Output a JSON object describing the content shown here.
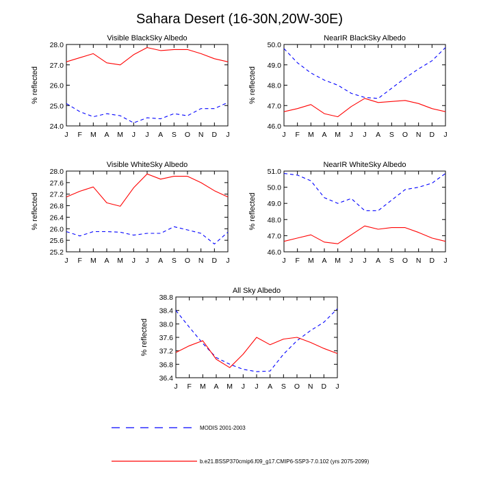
{
  "figure": {
    "title": "Sahara Desert (16-30N,20W-30E)",
    "legend": [
      {
        "label": "MODIS 2001-2003",
        "color": "#0000ff",
        "dash": "dashed"
      },
      {
        "label": "b.e21.BSSP370cmip6.f09_g17.CMIP6-SSP3-7.0.102 (yrs 2075-2099)",
        "color": "#ff0000",
        "dash": "solid"
      }
    ]
  },
  "chart_data": [
    {
      "type": "line",
      "title": "Visible BlackSky Albedo",
      "ylabel": "% reflected",
      "categories": [
        "J",
        "F",
        "M",
        "A",
        "M",
        "J",
        "J",
        "A",
        "S",
        "O",
        "N",
        "D",
        "J"
      ],
      "ylim": [
        24.0,
        28.0
      ],
      "yticks": [
        "24.0",
        "25.0",
        "26.0",
        "27.0",
        "28.0"
      ],
      "series": [
        {
          "name": "MODIS 2001-2003",
          "color": "#0000ff",
          "dashed": true,
          "values": [
            25.1,
            24.7,
            24.45,
            24.6,
            24.5,
            24.15,
            24.4,
            24.35,
            24.6,
            24.5,
            24.85,
            24.85,
            25.15
          ]
        },
        {
          "name": "b.e21.BSSP370cmip6.f09_g17.CMIP6-SSP3-7.0.102 (yrs 2075-2099)",
          "color": "#ff0000",
          "dashed": false,
          "values": [
            27.15,
            27.35,
            27.55,
            27.1,
            27.0,
            27.5,
            27.85,
            27.7,
            27.75,
            27.75,
            27.55,
            27.3,
            27.15
          ]
        }
      ]
    },
    {
      "type": "line",
      "title": "NearIR BlackSky Albedo",
      "ylabel": "% reflected",
      "categories": [
        "J",
        "F",
        "M",
        "A",
        "M",
        "J",
        "J",
        "A",
        "S",
        "O",
        "N",
        "D",
        "J"
      ],
      "ylim": [
        46.0,
        50.0
      ],
      "yticks": [
        "46.0",
        "47.0",
        "48.0",
        "49.0",
        "50.0"
      ],
      "series": [
        {
          "name": "MODIS 2001-2003",
          "color": "#0000ff",
          "dashed": true,
          "values": [
            49.8,
            49.1,
            48.6,
            48.25,
            48.0,
            47.6,
            47.4,
            47.35,
            47.85,
            48.35,
            48.8,
            49.2,
            49.85
          ]
        },
        {
          "name": "b.e21.BSSP370cmip6.f09_g17.CMIP6-SSP3-7.0.102 (yrs 2075-2099)",
          "color": "#ff0000",
          "dashed": false,
          "values": [
            46.7,
            46.85,
            47.05,
            46.6,
            46.45,
            46.95,
            47.35,
            47.15,
            47.2,
            47.25,
            47.1,
            46.85,
            46.7
          ]
        }
      ]
    },
    {
      "type": "line",
      "title": "Visible WhiteSky Albedo",
      "ylabel": "% reflected",
      "categories": [
        "J",
        "F",
        "M",
        "A",
        "M",
        "J",
        "J",
        "A",
        "S",
        "O",
        "N",
        "D",
        "J"
      ],
      "ylim": [
        25.2,
        28.0
      ],
      "yticks": [
        "25.2",
        "25.6",
        "26.0",
        "26.4",
        "26.8",
        "27.2",
        "27.6",
        "28.0"
      ],
      "series": [
        {
          "name": "MODIS 2001-2003",
          "color": "#0000ff",
          "dashed": true,
          "values": [
            25.9,
            25.75,
            25.9,
            25.9,
            25.88,
            25.78,
            25.84,
            25.84,
            26.07,
            25.96,
            25.84,
            25.47,
            25.88
          ]
        },
        {
          "name": "b.e21.BSSP370cmip6.f09_g17.CMIP6-SSP3-7.0.102 (yrs 2075-2099)",
          "color": "#ff0000",
          "dashed": false,
          "values": [
            27.1,
            27.3,
            27.45,
            26.9,
            26.78,
            27.42,
            27.9,
            27.72,
            27.82,
            27.82,
            27.6,
            27.32,
            27.1
          ]
        }
      ]
    },
    {
      "type": "line",
      "title": "NearIR WhiteSky Albedo",
      "ylabel": "% reflected",
      "categories": [
        "J",
        "F",
        "M",
        "A",
        "M",
        "J",
        "J",
        "A",
        "S",
        "O",
        "N",
        "D",
        "J"
      ],
      "ylim": [
        46.0,
        51.0
      ],
      "yticks": [
        "46.0",
        "47.0",
        "48.0",
        "49.0",
        "50.0",
        "51.0"
      ],
      "series": [
        {
          "name": "MODIS 2001-2003",
          "color": "#0000ff",
          "dashed": true,
          "values": [
            50.85,
            50.75,
            50.4,
            49.35,
            49.0,
            49.3,
            48.55,
            48.55,
            49.2,
            49.85,
            50.0,
            50.25,
            50.85
          ]
        },
        {
          "name": "b.e21.BSSP370cmip6.f09_g17.CMIP6-SSP3-7.0.102 (yrs 2075-2099)",
          "color": "#ff0000",
          "dashed": false,
          "values": [
            46.65,
            46.85,
            47.05,
            46.6,
            46.5,
            47.05,
            47.6,
            47.4,
            47.5,
            47.5,
            47.2,
            46.85,
            46.65
          ]
        }
      ]
    },
    {
      "type": "line",
      "title": "All Sky Albedo",
      "ylabel": "% reflected",
      "categories": [
        "J",
        "F",
        "M",
        "A",
        "M",
        "J",
        "J",
        "A",
        "S",
        "O",
        "N",
        "D",
        "J"
      ],
      "ylim": [
        36.4,
        38.8
      ],
      "yticks": [
        "36.4",
        "36.8",
        "37.2",
        "37.6",
        "38.0",
        "38.4",
        "38.8"
      ],
      "series": [
        {
          "name": "MODIS 2001-2003",
          "color": "#0000ff",
          "dashed": true,
          "values": [
            38.4,
            37.9,
            37.42,
            37.0,
            36.8,
            36.65,
            36.58,
            36.6,
            37.1,
            37.5,
            37.8,
            38.05,
            38.45
          ]
        },
        {
          "name": "b.e21.BSSP370cmip6.f09_g17.CMIP6-SSP3-7.0.102 (yrs 2075-2099)",
          "color": "#ff0000",
          "dashed": false,
          "values": [
            37.15,
            37.35,
            37.5,
            36.95,
            36.7,
            37.1,
            37.6,
            37.38,
            37.55,
            37.6,
            37.45,
            37.27,
            37.12
          ]
        }
      ]
    }
  ]
}
